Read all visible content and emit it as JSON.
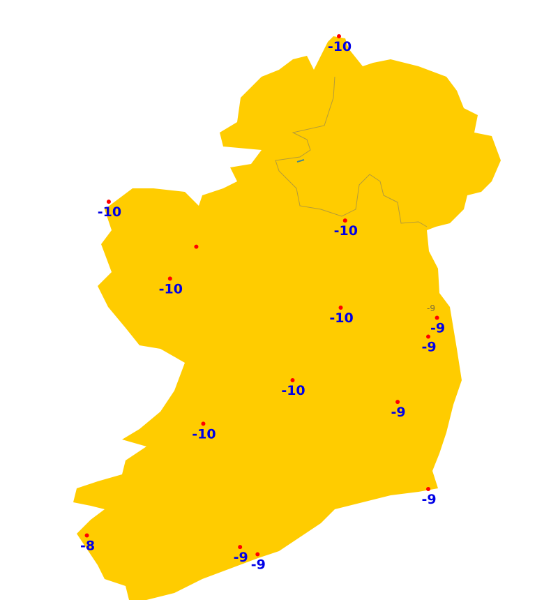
{
  "colors": {
    "land": "#ffcc00",
    "sea": "#ffffff",
    "station": "#ff0000",
    "label": "#0000e6",
    "border": "#b39a3a"
  },
  "stations": [
    {
      "label": "-10",
      "lon": -7.37,
      "lat": 55.37
    },
    {
      "label": "-10",
      "lon": -10.0,
      "lat": 54.23
    },
    {
      "label": "",
      "lon": -9.0,
      "lat": 53.92
    },
    {
      "label": "-10",
      "lon": -9.3,
      "lat": 53.7
    },
    {
      "label": "-10",
      "lon": -7.3,
      "lat": 54.1
    },
    {
      "label": "-10",
      "lon": -7.35,
      "lat": 53.5
    },
    {
      "label": "-9",
      "lon": -6.25,
      "lat": 53.43
    },
    {
      "label": "-9",
      "lon": -6.35,
      "lat": 53.3
    },
    {
      "label": "-10",
      "lon": -7.9,
      "lat": 53.0
    },
    {
      "label": "-9",
      "lon": -6.7,
      "lat": 52.85
    },
    {
      "label": "-10",
      "lon": -8.92,
      "lat": 52.7
    },
    {
      "label": "-9",
      "lon": -6.35,
      "lat": 52.25
    },
    {
      "label": "-8",
      "lon": -10.25,
      "lat": 51.93
    },
    {
      "label": "-9",
      "lon": -8.5,
      "lat": 51.85
    },
    {
      "label": "-9",
      "lon": -8.3,
      "lat": 51.8
    }
  ],
  "minor_labels": [
    {
      "label": "-9"
    }
  ]
}
